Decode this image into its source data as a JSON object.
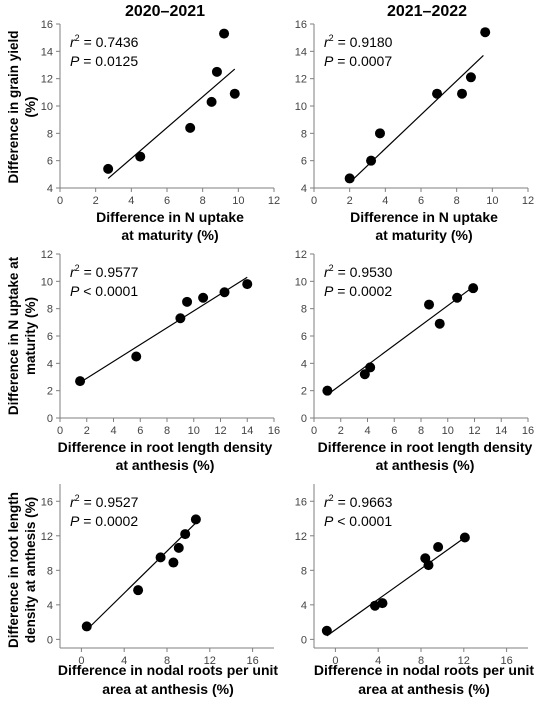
{
  "columns": [
    "2020–2021",
    "2021–2022"
  ],
  "rows": [
    {
      "ylabel": [
        "Difference in grain yield",
        "(%)"
      ],
      "xlabel": [
        "Difference in N uptake",
        "at maturity (%)"
      ]
    },
    {
      "ylabel": [
        "Difference in N uptake at",
        "maturity (%)"
      ],
      "xlabel": [
        "Difference in root length density",
        "at anthesis (%)"
      ]
    },
    {
      "ylabel": [
        "Difference in root length",
        "density at anthesis (%)"
      ],
      "xlabel": [
        "Difference in nodal roots per unit",
        "area at anthesis (%)"
      ]
    }
  ],
  "chart_data": [
    {
      "type": "scatter",
      "row": 0,
      "col": 0,
      "xlim": [
        0,
        12
      ],
      "xticks": [
        0,
        2,
        4,
        6,
        8,
        10,
        12
      ],
      "ylim": [
        4,
        16
      ],
      "yticks": [
        4,
        6,
        8,
        10,
        12,
        14,
        16
      ],
      "points": [
        [
          2.7,
          5.4
        ],
        [
          4.5,
          6.3
        ],
        [
          7.3,
          8.4
        ],
        [
          8.5,
          10.3
        ],
        [
          8.8,
          12.5
        ],
        [
          9.2,
          15.3
        ],
        [
          9.8,
          10.9
        ]
      ],
      "fit": [
        [
          2.7,
          4.7
        ],
        [
          9.8,
          12.7
        ]
      ],
      "r2": "0.7436",
      "p_op": "=",
      "p_val": "0.0125"
    },
    {
      "type": "scatter",
      "row": 0,
      "col": 1,
      "xlim": [
        0,
        12
      ],
      "xticks": [
        0,
        2,
        4,
        6,
        8,
        10,
        12
      ],
      "ylim": [
        4,
        16
      ],
      "yticks": [
        4,
        6,
        8,
        10,
        12,
        14,
        16
      ],
      "points": [
        [
          2.0,
          4.7
        ],
        [
          3.2,
          6.0
        ],
        [
          3.7,
          8.0
        ],
        [
          6.9,
          10.9
        ],
        [
          8.3,
          10.9
        ],
        [
          8.8,
          12.1
        ],
        [
          9.6,
          15.4
        ]
      ],
      "fit": [
        [
          2.0,
          4.4
        ],
        [
          9.5,
          13.7
        ]
      ],
      "r2": "0.9180",
      "p_op": "=",
      "p_val": "0.0007"
    },
    {
      "type": "scatter",
      "row": 1,
      "col": 0,
      "xlim": [
        0,
        16
      ],
      "xticks": [
        0,
        2,
        4,
        6,
        8,
        10,
        12,
        14,
        16
      ],
      "ylim": [
        0,
        12
      ],
      "yticks": [
        0,
        2,
        4,
        6,
        8,
        10,
        12
      ],
      "points": [
        [
          1.5,
          2.7
        ],
        [
          5.7,
          4.5
        ],
        [
          9.0,
          7.3
        ],
        [
          9.5,
          8.5
        ],
        [
          10.7,
          8.8
        ],
        [
          12.3,
          9.2
        ],
        [
          14.0,
          9.8
        ]
      ],
      "fit": [
        [
          1.5,
          2.6
        ],
        [
          14.0,
          10.3
        ]
      ],
      "r2": "0.9577",
      "p_op": "<",
      "p_val": "0.0001"
    },
    {
      "type": "scatter",
      "row": 1,
      "col": 1,
      "xlim": [
        0,
        16
      ],
      "xticks": [
        0,
        2,
        4,
        6,
        8,
        10,
        12,
        14,
        16
      ],
      "ylim": [
        0,
        12
      ],
      "yticks": [
        0,
        2,
        4,
        6,
        8,
        10,
        12
      ],
      "points": [
        [
          1.0,
          2.0
        ],
        [
          3.8,
          3.2
        ],
        [
          4.2,
          3.7
        ],
        [
          8.6,
          8.3
        ],
        [
          9.4,
          6.9
        ],
        [
          10.7,
          8.8
        ],
        [
          11.9,
          9.5
        ]
      ],
      "fit": [
        [
          1.0,
          1.7
        ],
        [
          11.9,
          9.6
        ]
      ],
      "r2": "0.9530",
      "p_op": "=",
      "p_val": "0.0002"
    },
    {
      "type": "scatter",
      "row": 2,
      "col": 0,
      "xlim": [
        -2,
        18
      ],
      "xticks": [
        0,
        4,
        8,
        12,
        16
      ],
      "ylim": [
        -1,
        18
      ],
      "yticks": [
        0,
        4,
        8,
        12,
        16
      ],
      "points": [
        [
          0.5,
          1.5
        ],
        [
          5.3,
          5.7
        ],
        [
          7.4,
          9.5
        ],
        [
          8.6,
          8.9
        ],
        [
          9.1,
          10.6
        ],
        [
          9.7,
          12.2
        ],
        [
          10.7,
          13.9
        ]
      ],
      "fit": [
        [
          0.5,
          1.1
        ],
        [
          10.7,
          13.5
        ]
      ],
      "r2": "0.9527",
      "p_op": "=",
      "p_val": "0.0002"
    },
    {
      "type": "scatter",
      "row": 2,
      "col": 1,
      "xlim": [
        -2,
        18
      ],
      "xticks": [
        0,
        4,
        8,
        12,
        16
      ],
      "ylim": [
        -1,
        18
      ],
      "yticks": [
        0,
        4,
        8,
        12,
        16
      ],
      "points": [
        [
          -0.8,
          1.0
        ],
        [
          3.7,
          3.9
        ],
        [
          4.4,
          4.2
        ],
        [
          8.4,
          9.4
        ],
        [
          8.7,
          8.6
        ],
        [
          9.6,
          10.7
        ],
        [
          12.1,
          11.8
        ]
      ],
      "fit": [
        [
          -0.8,
          0.4
        ],
        [
          12.1,
          11.8
        ]
      ],
      "r2": "0.9663",
      "p_op": "<",
      "p_val": "0.0001"
    }
  ]
}
